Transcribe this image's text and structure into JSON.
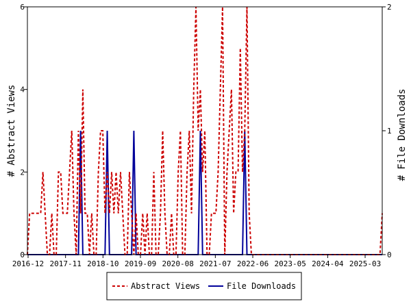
{
  "chart_data": {
    "type": "line",
    "x_tick_labels": [
      "2016-12",
      "2017-11",
      "2018-10",
      "2019-09",
      "2020-08",
      "2021-07",
      "2022-06",
      "2023-05",
      "2024-04",
      "2025-03"
    ],
    "ylabel_left": "# Abstract Views",
    "ylabel_right": "# File Downloads",
    "ylim_left": [
      0,
      6
    ],
    "ylim_right": [
      0,
      2
    ],
    "y_ticks_left": [
      "0",
      "2",
      "4",
      "6"
    ],
    "y_ticks_right": [
      "0",
      "1",
      "2"
    ],
    "grid": false,
    "legend_position": "bottom-center",
    "series": [
      {
        "name": "Abstract Views",
        "axis": "left",
        "color": "#cc0000",
        "style": "dashed",
        "values": [
          0,
          1,
          1,
          1,
          1,
          1,
          1,
          2,
          1,
          0,
          0,
          1,
          0,
          0,
          2,
          2,
          1,
          1,
          1,
          2,
          3,
          1,
          0,
          3,
          1,
          4,
          1,
          1,
          0,
          1,
          0,
          0,
          2,
          3,
          3,
          1,
          2,
          1,
          2,
          1,
          2,
          1,
          2,
          1,
          0,
          0,
          2,
          1,
          0,
          1,
          0,
          0,
          1,
          0,
          1,
          0,
          0,
          2,
          0,
          0,
          1,
          3,
          1,
          0,
          0,
          1,
          0,
          0,
          2,
          3,
          0,
          0,
          2,
          3,
          1,
          4,
          6,
          3,
          4,
          2,
          3,
          0,
          0,
          1,
          1,
          1,
          2,
          4,
          6,
          0,
          2,
          3,
          4,
          1,
          2,
          2,
          5,
          2,
          3,
          6,
          1,
          0,
          0,
          0,
          0,
          0,
          0,
          0,
          0,
          0,
          0,
          0,
          0,
          0,
          0,
          0,
          0,
          0,
          0,
          0,
          0,
          0,
          0,
          0,
          0,
          0,
          0,
          0,
          0,
          0,
          0,
          0,
          0,
          0,
          0,
          0,
          0,
          0,
          0,
          0,
          0,
          0,
          0,
          0,
          0,
          0,
          0,
          0,
          0,
          0,
          0,
          0,
          0,
          0,
          0,
          0,
          0,
          0,
          0,
          0,
          1
        ]
      },
      {
        "name": "File Downloads",
        "axis": "right",
        "color": "#00009a",
        "style": "solid",
        "values": [
          0,
          0,
          0,
          0,
          0,
          0,
          0,
          0,
          0,
          0,
          0,
          0,
          0,
          0,
          0,
          0,
          0,
          0,
          0,
          0,
          0,
          0,
          0,
          0,
          1,
          0,
          0,
          0,
          0,
          0,
          0,
          0,
          0,
          0,
          0,
          0,
          1,
          0,
          0,
          0,
          0,
          0,
          0,
          0,
          0,
          0,
          0,
          0,
          1,
          0,
          0,
          0,
          0,
          0,
          0,
          0,
          0,
          0,
          0,
          0,
          0,
          0,
          0,
          0,
          0,
          0,
          0,
          0,
          0,
          0,
          0,
          0,
          0,
          0,
          0,
          0,
          0,
          0,
          1,
          0,
          0,
          0,
          0,
          0,
          0,
          0,
          0,
          0,
          0,
          0,
          0,
          0,
          0,
          0,
          0,
          0,
          0,
          0,
          1,
          0,
          0,
          0,
          0,
          0,
          0,
          0,
          0,
          0,
          0,
          0,
          0,
          0,
          0,
          0,
          0,
          0,
          0,
          0,
          0,
          0,
          0,
          0,
          0,
          0,
          0,
          0,
          0,
          0,
          0,
          0,
          0,
          0,
          0,
          0,
          0,
          0,
          0,
          0,
          0,
          0,
          0,
          0,
          0,
          0,
          0,
          0,
          0,
          0,
          0,
          0,
          0,
          0,
          0,
          0,
          0,
          0,
          0,
          0,
          0,
          0,
          0
        ]
      }
    ]
  }
}
